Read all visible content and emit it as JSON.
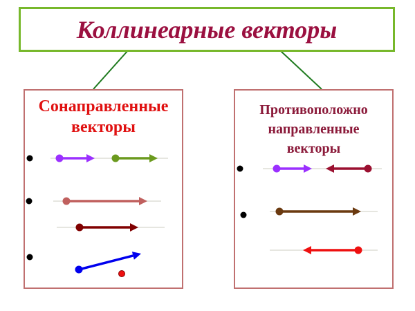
{
  "title": "Коллинеарные векторы",
  "left_panel": {
    "heading_line1": "Сонаправленные",
    "heading_line2": "векторы"
  },
  "right_panel": {
    "heading_line1": "Противоположно",
    "heading_line2": "направленные",
    "heading_line3": "векторы"
  },
  "colors": {
    "title": "#9b1040",
    "title_border": "#77b82b",
    "connector": "#1e7a1e",
    "panel_border": "#c07070",
    "left_heading": "#e01010",
    "right_heading": "#8b1a3a",
    "guide_line": "#e6e6e0"
  },
  "left_vectors": [
    {
      "color": "#9b30ff",
      "direction": "right"
    },
    {
      "color": "#6b9a1e",
      "direction": "right"
    },
    {
      "color": "#c0605e",
      "direction": "right"
    },
    {
      "color": "#800000",
      "direction": "right"
    },
    {
      "color": "#0000ee",
      "direction": "up-right"
    }
  ],
  "right_vectors": [
    {
      "color": "#9b30ff",
      "direction": "right"
    },
    {
      "color": "#9b1030",
      "direction": "left"
    },
    {
      "color": "#6b3a10",
      "direction": "right"
    },
    {
      "color": "#ee1010",
      "direction": "left"
    }
  ],
  "loose_point_color": "#ee1010"
}
